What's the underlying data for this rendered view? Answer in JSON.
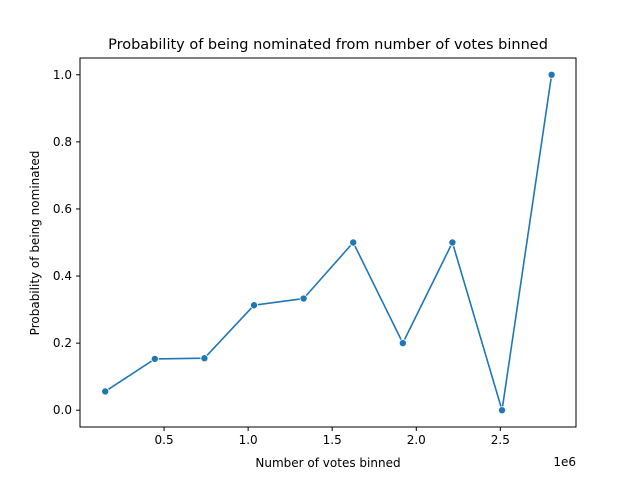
{
  "chart_data": {
    "type": "line",
    "title": "Probability of being nominated from number of votes binned",
    "xlabel": "Number of votes binned",
    "ylabel": "Probability of being nominated",
    "x_offset_label": "1e6",
    "x_scale": 1000000,
    "xlim": [
      0,
      2950000
    ],
    "ylim": [
      -0.05,
      1.05
    ],
    "x_ticks": [
      {
        "value": 500000,
        "label": "0.5"
      },
      {
        "value": 1000000,
        "label": "1.0"
      },
      {
        "value": 1500000,
        "label": "1.5"
      },
      {
        "value": 2000000,
        "label": "2.0"
      },
      {
        "value": 2500000,
        "label": "2.5"
      }
    ],
    "y_ticks": [
      {
        "value": 0.0,
        "label": "0.0"
      },
      {
        "value": 0.2,
        "label": "0.2"
      },
      {
        "value": 0.4,
        "label": "0.4"
      },
      {
        "value": 0.6,
        "label": "0.6"
      },
      {
        "value": 0.8,
        "label": "0.8"
      },
      {
        "value": 1.0,
        "label": "1.0"
      }
    ],
    "grid": false,
    "series": [
      {
        "color": "#1f77b4",
        "marker": "circle",
        "x": [
          150000,
          445000,
          740000,
          1035000,
          1330000,
          1625000,
          1920000,
          2215000,
          2510000,
          2805000
        ],
        "y": [
          0.056,
          0.153,
          0.155,
          0.313,
          0.333,
          0.5,
          0.2,
          0.5,
          0.0,
          1.0
        ]
      }
    ]
  }
}
